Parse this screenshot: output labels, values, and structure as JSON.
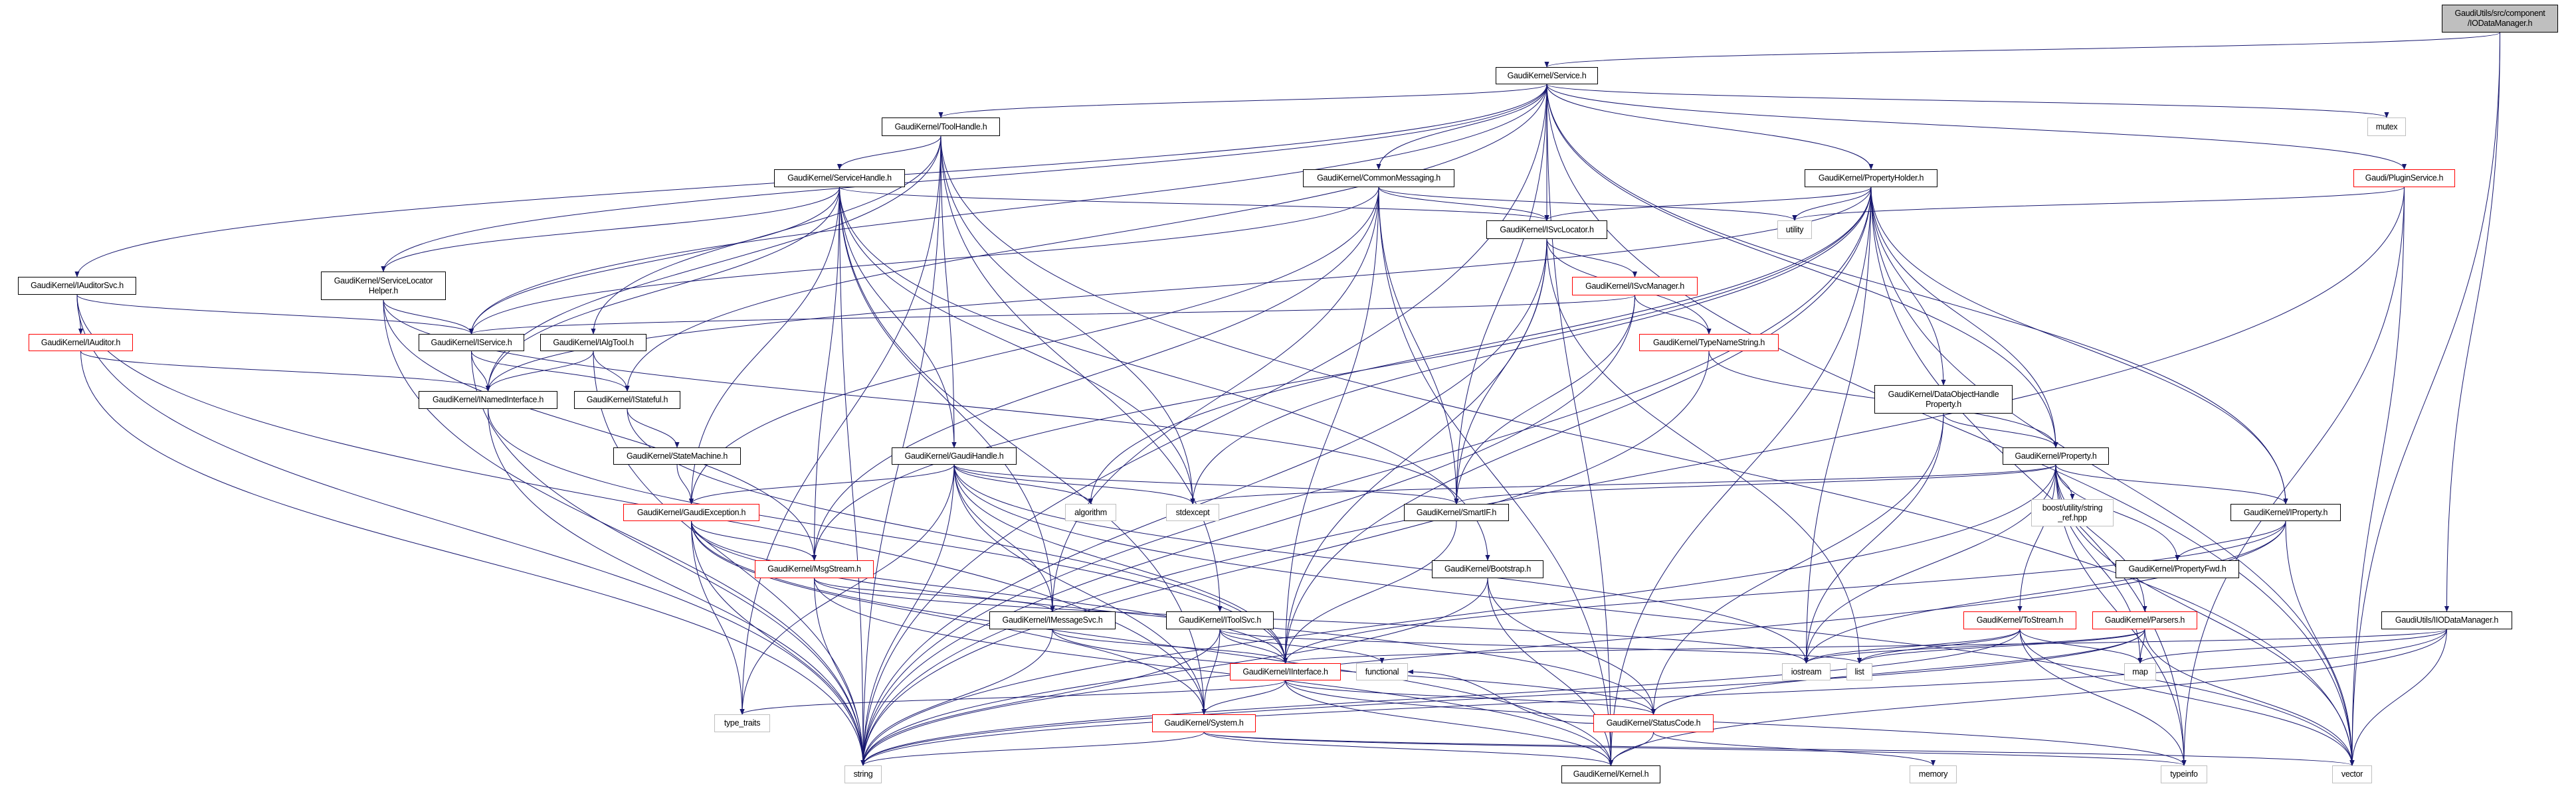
{
  "colors": {
    "edge": "#191970",
    "root_fill": "#bfbfbf",
    "incomplete_border": "#ff0000",
    "system_border": "#bfbfbf",
    "node_border": "#000000"
  },
  "nodes": [
    {
      "id": "root",
      "label": "GaudiUtils/src/component\n/IODataManager.h",
      "kind": "root"
    },
    {
      "id": "service",
      "label": "GaudiKernel/Service.h",
      "kind": "normal"
    },
    {
      "id": "mutex",
      "label": "mutex",
      "kind": "sys"
    },
    {
      "id": "toolhandle",
      "label": "GaudiKernel/ToolHandle.h",
      "kind": "normal"
    },
    {
      "id": "servicehandle",
      "label": "GaudiKernel/ServiceHandle.h",
      "kind": "normal"
    },
    {
      "id": "commonmessaging",
      "label": "GaudiKernel/CommonMessaging.h",
      "kind": "normal"
    },
    {
      "id": "propertyholder",
      "label": "GaudiKernel/PropertyHolder.h",
      "kind": "normal"
    },
    {
      "id": "pluginservice",
      "label": "Gaudi/PluginService.h",
      "kind": "red"
    },
    {
      "id": "isvclocator",
      "label": "GaudiKernel/ISvcLocator.h",
      "kind": "normal"
    },
    {
      "id": "utility",
      "label": "utility",
      "kind": "sys"
    },
    {
      "id": "iauditorsvc",
      "label": "GaudiKernel/IAuditorSvc.h",
      "kind": "normal"
    },
    {
      "id": "servicelocatorhelper",
      "label": "GaudiKernel/ServiceLocator\nHelper.h",
      "kind": "normal"
    },
    {
      "id": "isvcmanager",
      "label": "GaudiKernel/ISvcManager.h",
      "kind": "red"
    },
    {
      "id": "iauditor",
      "label": "GaudiKernel/IAuditor.h",
      "kind": "red"
    },
    {
      "id": "iservice",
      "label": "GaudiKernel/IService.h",
      "kind": "normal"
    },
    {
      "id": "ialgtool",
      "label": "GaudiKernel/IAlgTool.h",
      "kind": "normal"
    },
    {
      "id": "typenamestring",
      "label": "GaudiKernel/TypeNameString.h",
      "kind": "red"
    },
    {
      "id": "inamedinterface",
      "label": "GaudiKernel/INamedInterface.h",
      "kind": "normal"
    },
    {
      "id": "istateful",
      "label": "GaudiKernel/IStateful.h",
      "kind": "normal"
    },
    {
      "id": "dataobjecthandleproperty",
      "label": "GaudiKernel/DataObjectHandle\nProperty.h",
      "kind": "normal"
    },
    {
      "id": "statemachine",
      "label": "GaudiKernel/StateMachine.h",
      "kind": "normal"
    },
    {
      "id": "gaudihandle",
      "label": "GaudiKernel/GaudiHandle.h",
      "kind": "normal"
    },
    {
      "id": "property",
      "label": "GaudiKernel/Property.h",
      "kind": "normal"
    },
    {
      "id": "boost",
      "label": "boost/utility/string\n_ref.hpp",
      "kind": "sys"
    },
    {
      "id": "gaudiexception",
      "label": "GaudiKernel/GaudiException.h",
      "kind": "red"
    },
    {
      "id": "algorithm",
      "label": "algorithm",
      "kind": "sys"
    },
    {
      "id": "stdexcept",
      "label": "stdexcept",
      "kind": "sys"
    },
    {
      "id": "smartif",
      "label": "GaudiKernel/SmartIF.h",
      "kind": "normal"
    },
    {
      "id": "iproperty",
      "label": "GaudiKernel/IProperty.h",
      "kind": "normal"
    },
    {
      "id": "msgstream",
      "label": "GaudiKernel/MsgStream.h",
      "kind": "red"
    },
    {
      "id": "bootstrap",
      "label": "GaudiKernel/Bootstrap.h",
      "kind": "normal"
    },
    {
      "id": "propertyfwd",
      "label": "GaudiKernel/PropertyFwd.h",
      "kind": "normal"
    },
    {
      "id": "imessagesvc",
      "label": "GaudiKernel/IMessageSvc.h",
      "kind": "normal"
    },
    {
      "id": "itoolsvc",
      "label": "GaudiKernel/IToolSvc.h",
      "kind": "normal"
    },
    {
      "id": "tostream",
      "label": "GaudiKernel/ToStream.h",
      "kind": "red"
    },
    {
      "id": "parsers",
      "label": "GaudiKernel/Parsers.h",
      "kind": "red"
    },
    {
      "id": "iiodatamanager",
      "label": "GaudiUtils/IIODataManager.h",
      "kind": "normal"
    },
    {
      "id": "iinterface",
      "label": "GaudiKernel/IInterface.h",
      "kind": "red"
    },
    {
      "id": "functional",
      "label": "functional",
      "kind": "sys"
    },
    {
      "id": "iostream",
      "label": "iostream",
      "kind": "sys"
    },
    {
      "id": "list",
      "label": "list",
      "kind": "sys"
    },
    {
      "id": "map",
      "label": "map",
      "kind": "sys"
    },
    {
      "id": "type_traits",
      "label": "type_traits",
      "kind": "sys"
    },
    {
      "id": "system",
      "label": "GaudiKernel/System.h",
      "kind": "red"
    },
    {
      "id": "statuscode",
      "label": "GaudiKernel/StatusCode.h",
      "kind": "red"
    },
    {
      "id": "string",
      "label": "string",
      "kind": "sys"
    },
    {
      "id": "kernel",
      "label": "GaudiKernel/Kernel.h",
      "kind": "normal"
    },
    {
      "id": "memory",
      "label": "memory",
      "kind": "sys"
    },
    {
      "id": "typeinfo",
      "label": "typeinfo",
      "kind": "sys"
    },
    {
      "id": "vector",
      "label": "vector",
      "kind": "sys"
    }
  ],
  "edges": [
    [
      "root",
      "service"
    ],
    [
      "root",
      "iiodatamanager"
    ],
    [
      "root",
      "vector"
    ],
    [
      "service",
      "toolhandle"
    ],
    [
      "service",
      "iauditorsvc"
    ],
    [
      "service",
      "servicelocatorhelper"
    ],
    [
      "service",
      "iservice"
    ],
    [
      "service",
      "commonmessaging"
    ],
    [
      "service",
      "isvclocator"
    ],
    [
      "service",
      "propertyholder"
    ],
    [
      "service",
      "mutex"
    ],
    [
      "service",
      "pluginservice"
    ],
    [
      "service",
      "iproperty"
    ],
    [
      "service",
      "property"
    ],
    [
      "service",
      "smartif"
    ],
    [
      "service",
      "istateful"
    ],
    [
      "service",
      "string"
    ],
    [
      "service",
      "vector"
    ],
    [
      "service",
      "kernel"
    ],
    [
      "toolhandle",
      "servicehandle"
    ],
    [
      "toolhandle",
      "ialgtool"
    ],
    [
      "toolhandle",
      "inamedinterface"
    ],
    [
      "toolhandle",
      "gaudihandle"
    ],
    [
      "toolhandle",
      "itoolsvc"
    ],
    [
      "toolhandle",
      "string"
    ],
    [
      "toolhandle",
      "stdexcept"
    ],
    [
      "toolhandle",
      "type_traits"
    ],
    [
      "toolhandle",
      "vector"
    ],
    [
      "servicehandle",
      "servicelocatorhelper"
    ],
    [
      "servicehandle",
      "iservice"
    ],
    [
      "servicehandle",
      "isvclocator"
    ],
    [
      "servicehandle",
      "gaudihandle"
    ],
    [
      "servicehandle",
      "gaudiexception"
    ],
    [
      "servicehandle",
      "msgstream"
    ],
    [
      "servicehandle",
      "imessagesvc"
    ],
    [
      "servicehandle",
      "system"
    ],
    [
      "servicehandle",
      "string"
    ],
    [
      "servicehandle",
      "stdexcept"
    ],
    [
      "servicehandle",
      "inamedinterface"
    ],
    [
      "servicehandle",
      "bootstrap"
    ],
    [
      "commonmessaging",
      "iservice"
    ],
    [
      "commonmessaging",
      "isvclocator"
    ],
    [
      "commonmessaging",
      "msgstream"
    ],
    [
      "commonmessaging",
      "imessagesvc"
    ],
    [
      "commonmessaging",
      "smartif"
    ],
    [
      "commonmessaging",
      "utility"
    ],
    [
      "commonmessaging",
      "gaudiexception"
    ],
    [
      "commonmessaging",
      "kernel"
    ],
    [
      "commonmessaging",
      "iinterface"
    ],
    [
      "isvclocator",
      "isvcmanager"
    ],
    [
      "isvclocator",
      "typenamestring"
    ],
    [
      "isvclocator",
      "smartif"
    ],
    [
      "isvclocator",
      "iinterface"
    ],
    [
      "isvclocator",
      "string"
    ],
    [
      "isvclocator",
      "list"
    ],
    [
      "isvcmanager",
      "iservice"
    ],
    [
      "isvcmanager",
      "typenamestring"
    ],
    [
      "isvcmanager",
      "smartif"
    ],
    [
      "isvcmanager",
      "string"
    ],
    [
      "typenamestring",
      "property"
    ],
    [
      "typenamestring",
      "string"
    ],
    [
      "propertyholder",
      "isvclocator"
    ],
    [
      "propertyholder",
      "utility"
    ],
    [
      "propertyholder",
      "property"
    ],
    [
      "propertyholder",
      "iproperty"
    ],
    [
      "propertyholder",
      "dataobjecthandleproperty"
    ],
    [
      "propertyholder",
      "inamedinterface"
    ],
    [
      "propertyholder",
      "msgstream"
    ],
    [
      "propertyholder",
      "iinterface"
    ],
    [
      "propertyholder",
      "stdexcept"
    ],
    [
      "propertyholder",
      "algorithm"
    ],
    [
      "propertyholder",
      "iostream"
    ],
    [
      "propertyholder",
      "vector"
    ],
    [
      "propertyholder",
      "kernel"
    ],
    [
      "propertyholder",
      "string"
    ],
    [
      "propertyholder",
      "typeinfo"
    ],
    [
      "pluginservice",
      "utility"
    ],
    [
      "pluginservice",
      "string"
    ],
    [
      "pluginservice",
      "vector"
    ],
    [
      "pluginservice",
      "typeinfo"
    ],
    [
      "iauditorsvc",
      "iservice"
    ],
    [
      "iauditorsvc",
      "iauditor"
    ],
    [
      "iauditorsvc",
      "string"
    ],
    [
      "iauditorsvc",
      "system"
    ],
    [
      "iauditor",
      "inamedinterface"
    ],
    [
      "iauditor",
      "string"
    ],
    [
      "servicelocatorhelper",
      "iservice"
    ],
    [
      "servicelocatorhelper",
      "smartif"
    ],
    [
      "servicelocatorhelper",
      "string"
    ],
    [
      "servicelocatorhelper",
      "msgstream"
    ],
    [
      "iservice",
      "inamedinterface"
    ],
    [
      "iservice",
      "istateful"
    ],
    [
      "iservice",
      "string"
    ],
    [
      "ialgtool",
      "inamedinterface"
    ],
    [
      "ialgtool",
      "istateful"
    ],
    [
      "ialgtool",
      "string"
    ],
    [
      "inamedinterface",
      "iinterface"
    ],
    [
      "inamedinterface",
      "string"
    ],
    [
      "istateful",
      "statemachine"
    ],
    [
      "istateful",
      "iinterface"
    ],
    [
      "statemachine",
      "gaudiexception"
    ],
    [
      "gaudiexception",
      "msgstream"
    ],
    [
      "gaudiexception",
      "iinterface"
    ],
    [
      "gaudiexception",
      "system"
    ],
    [
      "gaudiexception",
      "string"
    ],
    [
      "gaudiexception",
      "kernel"
    ],
    [
      "gaudiexception",
      "statuscode"
    ],
    [
      "gaudiexception",
      "type_traits"
    ],
    [
      "msgstream",
      "imessagesvc"
    ],
    [
      "msgstream",
      "string"
    ],
    [
      "msgstream",
      "kernel"
    ],
    [
      "msgstream",
      "iostream"
    ],
    [
      "gaudihandle",
      "gaudiexception"
    ],
    [
      "gaudihandle",
      "algorithm"
    ],
    [
      "gaudihandle",
      "stdexcept"
    ],
    [
      "gaudihandle",
      "smartif"
    ],
    [
      "gaudihandle",
      "iinterface"
    ],
    [
      "gaudihandle",
      "system"
    ],
    [
      "gaudihandle",
      "type_traits"
    ],
    [
      "gaudihandle",
      "string"
    ],
    [
      "gaudihandle",
      "imessagesvc"
    ],
    [
      "gaudihandle",
      "iostream"
    ],
    [
      "gaudihandle",
      "vector"
    ],
    [
      "smartif",
      "iinterface"
    ],
    [
      "bootstrap",
      "string"
    ],
    [
      "bootstrap",
      "kernel"
    ],
    [
      "bootstrap",
      "statuscode"
    ],
    [
      "imessagesvc",
      "iinterface"
    ],
    [
      "imessagesvc",
      "string"
    ],
    [
      "imessagesvc",
      "statuscode"
    ],
    [
      "itoolsvc",
      "iinterface"
    ],
    [
      "itoolsvc",
      "system"
    ],
    [
      "itoolsvc",
      "functional"
    ],
    [
      "itoolsvc",
      "string"
    ],
    [
      "itoolsvc",
      "list"
    ],
    [
      "iinterface",
      "system"
    ],
    [
      "iinterface",
      "statuscode"
    ],
    [
      "iinterface",
      "kernel"
    ],
    [
      "iinterface",
      "type_traits"
    ],
    [
      "iinterface",
      "typeinfo"
    ],
    [
      "system",
      "string"
    ],
    [
      "system",
      "kernel"
    ],
    [
      "system",
      "typeinfo"
    ],
    [
      "system",
      "vector"
    ],
    [
      "statuscode",
      "kernel"
    ],
    [
      "statuscode",
      "memory"
    ],
    [
      "statuscode",
      "functional"
    ],
    [
      "property",
      "smartif"
    ],
    [
      "property",
      "stdexcept"
    ],
    [
      "property",
      "boost"
    ],
    [
      "property",
      "iproperty"
    ],
    [
      "property",
      "propertyfwd"
    ],
    [
      "property",
      "tostream"
    ],
    [
      "property",
      "parsers"
    ],
    [
      "property",
      "string"
    ],
    [
      "property",
      "vector"
    ],
    [
      "property",
      "typeinfo"
    ],
    [
      "property",
      "iostream"
    ],
    [
      "property",
      "map"
    ],
    [
      "iproperty",
      "propertyfwd"
    ],
    [
      "iproperty",
      "iinterface"
    ],
    [
      "iproperty",
      "string"
    ],
    [
      "iproperty",
      "vector"
    ],
    [
      "iproperty",
      "iostream"
    ],
    [
      "dataobjecthandleproperty",
      "property"
    ],
    [
      "dataobjecthandleproperty",
      "statuscode"
    ],
    [
      "dataobjecthandleproperty",
      "iostream"
    ],
    [
      "tostream",
      "iostream"
    ],
    [
      "tostream",
      "list"
    ],
    [
      "tostream",
      "map"
    ],
    [
      "tostream",
      "vector"
    ],
    [
      "tostream",
      "string"
    ],
    [
      "tostream",
      "typeinfo"
    ],
    [
      "parsers",
      "iostream"
    ],
    [
      "parsers",
      "list"
    ],
    [
      "parsers",
      "map"
    ],
    [
      "parsers",
      "vector"
    ],
    [
      "parsers",
      "statuscode"
    ],
    [
      "parsers",
      "string"
    ],
    [
      "iiodatamanager",
      "iinterface"
    ],
    [
      "iiodatamanager",
      "map"
    ],
    [
      "iiodatamanager",
      "string"
    ],
    [
      "iiodatamanager",
      "vector"
    ],
    [
      "iiodatamanager",
      "kernel"
    ]
  ]
}
